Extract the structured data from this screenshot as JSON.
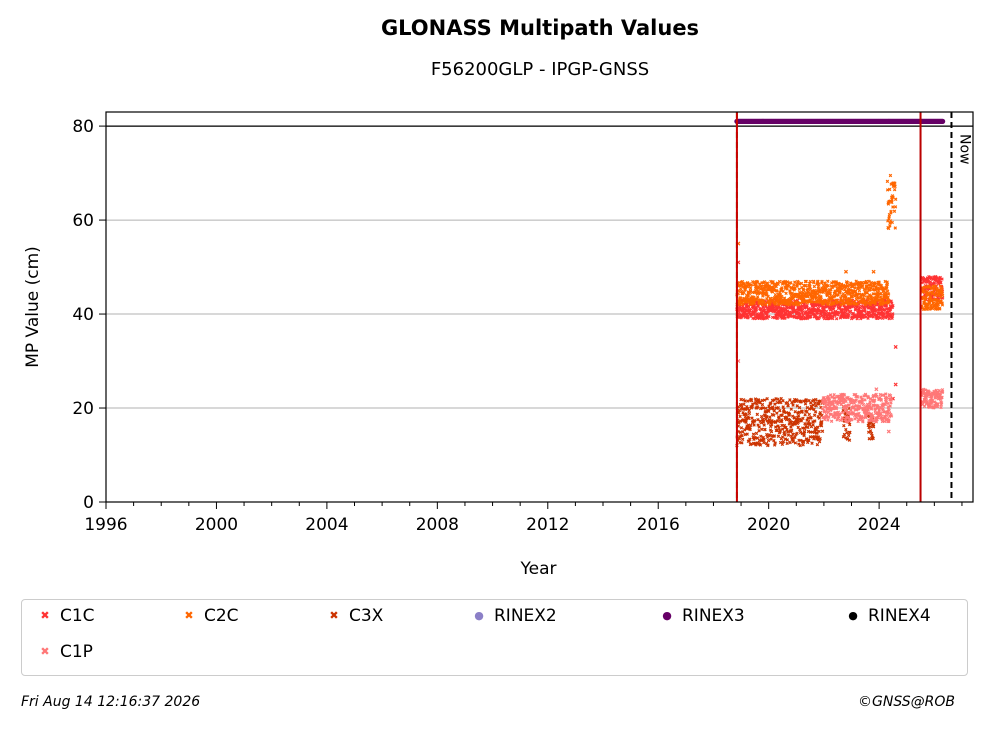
{
  "header": {
    "title": "GLONASS Multipath Values",
    "subtitle": "F56200GLP - IPGP-GNSS"
  },
  "footer": {
    "timestamp": "Fri Aug 14 12:16:37 2026",
    "credit": "©GNSS@ROB"
  },
  "chart_data": {
    "type": "scatter",
    "title": "GLONASS Multipath Values",
    "subtitle": "F56200GLP - IPGP-GNSS",
    "xlabel": "Year",
    "ylabel": "MP Value (cm)",
    "xlim": [
      1996,
      2027.4
    ],
    "ylim": [
      0,
      83
    ],
    "xticks": [
      1996,
      2000,
      2004,
      2008,
      2012,
      2016,
      2020,
      2024
    ],
    "yticks": [
      0,
      20,
      40,
      60,
      80
    ],
    "grid": "y",
    "legend_position": "below",
    "vlines": [
      {
        "x": 2018.85,
        "color": "#008000",
        "style": "dashed"
      },
      {
        "x": 2018.85,
        "color": "#cc0000",
        "style": "solid"
      },
      {
        "x": 2025.5,
        "color": "#bb0000",
        "style": "solid"
      },
      {
        "x": 2026.62,
        "color": "#000000",
        "style": "dashed",
        "label": "Now"
      }
    ],
    "hline": {
      "y": 80,
      "color": "#000000"
    },
    "series": [
      {
        "name": "C1C",
        "color": "#ff3333",
        "marker": "x",
        "segments": [
          {
            "x0": 2018.85,
            "x1": 2024.5,
            "ymin": 39,
            "ymax": 43
          },
          {
            "x0": 2025.55,
            "x1": 2026.3,
            "ymin": 43,
            "ymax": 48
          }
        ],
        "points": [
          [
            2018.9,
            51
          ],
          [
            2024.5,
            22
          ],
          [
            2024.6,
            33
          ],
          [
            2024.6,
            25
          ]
        ]
      },
      {
        "name": "C2C",
        "color": "#ff6600",
        "marker": "x",
        "segments": [
          {
            "x0": 2018.85,
            "x1": 2024.35,
            "ymin": 42,
            "ymax": 47
          },
          {
            "x0": 2024.3,
            "x1": 2024.6,
            "ymin": 58,
            "ymax": 70
          },
          {
            "x0": 2025.55,
            "x1": 2026.3,
            "ymin": 41,
            "ymax": 46
          }
        ],
        "points": [
          [
            2018.9,
            55
          ],
          [
            2022.8,
            49
          ],
          [
            2023.8,
            49
          ]
        ]
      },
      {
        "name": "C3X",
        "color": "#cc3300",
        "marker": "x",
        "segments": [
          {
            "x0": 2018.85,
            "x1": 2021.95,
            "ymin": 12,
            "ymax": 22
          },
          {
            "x0": 2022.7,
            "x1": 2022.95,
            "ymin": 13,
            "ymax": 21
          },
          {
            "x0": 2023.6,
            "x1": 2023.8,
            "ymin": 13,
            "ymax": 19
          }
        ],
        "points": []
      },
      {
        "name": "RINEX2",
        "color": "#8b7fc7",
        "marker": "o",
        "segments": [],
        "points": []
      },
      {
        "name": "RINEX3",
        "color": "#660066",
        "marker": "o",
        "segments": [
          {
            "x0": 2018.85,
            "x1": 2026.3,
            "ymin": 81,
            "ymax": 81
          }
        ],
        "points": []
      },
      {
        "name": "RINEX4",
        "color": "#000000",
        "marker": "o",
        "segments": [],
        "points": []
      },
      {
        "name": "C1P",
        "color": "#ff7777",
        "marker": "x",
        "segments": [
          {
            "x0": 2021.95,
            "x1": 2024.45,
            "ymin": 17,
            "ymax": 23
          },
          {
            "x0": 2025.55,
            "x1": 2026.3,
            "ymin": 20,
            "ymax": 24
          }
        ],
        "points": [
          [
            2018.9,
            30
          ],
          [
            2024.35,
            15
          ],
          [
            2023.9,
            24
          ]
        ]
      }
    ]
  }
}
